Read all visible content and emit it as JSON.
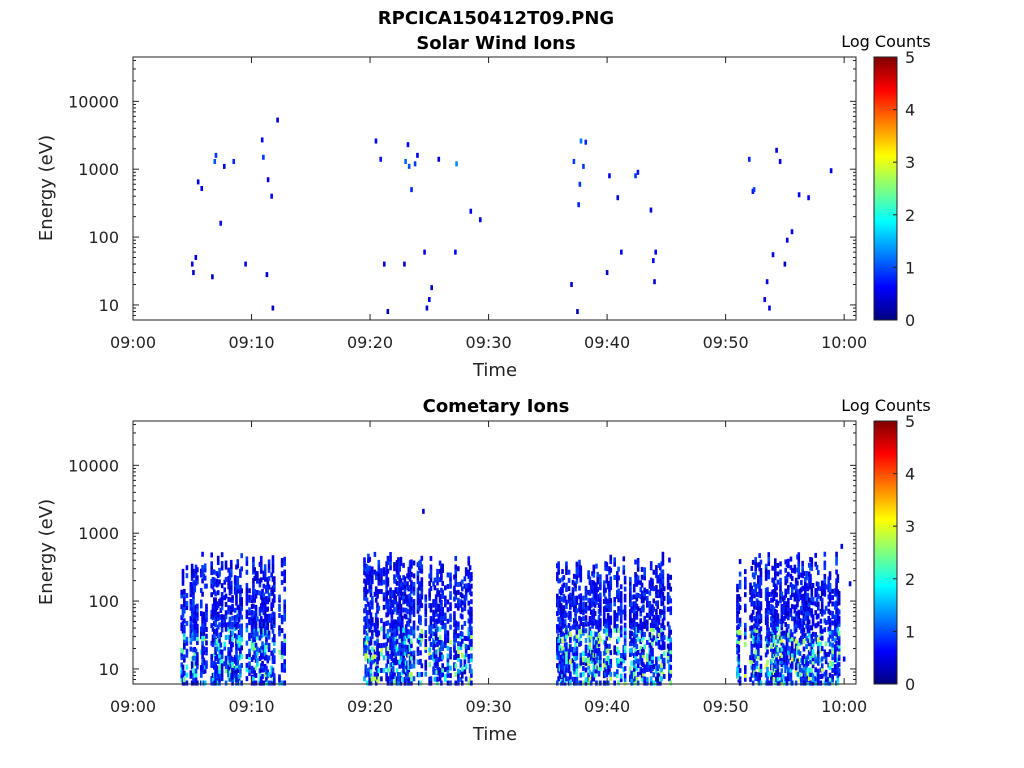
{
  "figure": {
    "title": "RPCICA150412T09.PNG"
  },
  "chart_data": [
    {
      "type": "heatmap",
      "title": "Solar Wind Ions",
      "xlabel": "Time",
      "ylabel": "Energy (eV)",
      "x_ticks": [
        "09:00",
        "09:10",
        "09:20",
        "09:30",
        "09:40",
        "09:50",
        "10:00"
      ],
      "xlim_minutes_after_0900": [
        0,
        61
      ],
      "y_scale": "log",
      "y_ticks": [
        {
          "value": 10,
          "label": "10"
        },
        {
          "value": 100,
          "label": "100"
        },
        {
          "value": 1000,
          "label": "1000"
        },
        {
          "value": 10000,
          "label": "10000"
        }
      ],
      "ylim": [
        6,
        45000
      ],
      "colorbar": {
        "label": "Log Counts",
        "range": [
          0,
          5
        ],
        "ticks": [
          "0",
          "1",
          "2",
          "3",
          "4",
          "5"
        ],
        "colormap": "jet"
      },
      "grid": false,
      "cells": [
        [
          5.0,
          40,
          0.6
        ],
        [
          5.1,
          30,
          0.4
        ],
        [
          5.3,
          50,
          0.5
        ],
        [
          5.5,
          650,
          0.6
        ],
        [
          5.8,
          520,
          0.5
        ],
        [
          6.7,
          26,
          0.3
        ],
        [
          6.9,
          1300,
          1.0
        ],
        [
          7.0,
          1600,
          0.9
        ],
        [
          7.4,
          160,
          0.7
        ],
        [
          7.7,
          1100,
          0.5
        ],
        [
          8.5,
          1300,
          0.8
        ],
        [
          9.5,
          40,
          0.5
        ],
        [
          10.9,
          2700,
          0.6
        ],
        [
          11.0,
          1500,
          0.9
        ],
        [
          11.3,
          28,
          0.4
        ],
        [
          11.4,
          700,
          0.5
        ],
        [
          11.7,
          400,
          0.6
        ],
        [
          11.8,
          9,
          0.3
        ],
        [
          12.2,
          5300,
          0.4
        ],
        [
          20.5,
          2600,
          0.6
        ],
        [
          20.9,
          1400,
          0.7
        ],
        [
          21.2,
          40,
          0.5
        ],
        [
          21.5,
          8,
          0.3
        ],
        [
          22.9,
          40,
          0.4
        ],
        [
          23.0,
          1300,
          1.1
        ],
        [
          23.2,
          2300,
          0.6
        ],
        [
          23.3,
          1100,
          1.0
        ],
        [
          23.5,
          500,
          0.8
        ],
        [
          23.8,
          1200,
          0.9
        ],
        [
          24.0,
          1600,
          0.5
        ],
        [
          24.6,
          60,
          0.5
        ],
        [
          24.8,
          9,
          0.4
        ],
        [
          25.0,
          12,
          0.5
        ],
        [
          25.2,
          18,
          0.4
        ],
        [
          25.8,
          1400,
          0.5
        ],
        [
          27.2,
          60,
          0.6
        ],
        [
          27.3,
          1200,
          1.3
        ],
        [
          28.5,
          240,
          0.5
        ],
        [
          29.3,
          180,
          0.4
        ],
        [
          37.0,
          20,
          0.4
        ],
        [
          37.2,
          1300,
          0.9
        ],
        [
          37.5,
          8,
          0.3
        ],
        [
          37.6,
          300,
          0.8
        ],
        [
          37.7,
          600,
          0.9
        ],
        [
          37.8,
          2600,
          1.2
        ],
        [
          38.0,
          1100,
          0.9
        ],
        [
          38.2,
          2500,
          0.8
        ],
        [
          40.0,
          30,
          0.4
        ],
        [
          40.2,
          800,
          0.6
        ],
        [
          40.9,
          380,
          0.5
        ],
        [
          41.2,
          60,
          0.5
        ],
        [
          42.4,
          800,
          0.9
        ],
        [
          42.6,
          900,
          0.7
        ],
        [
          43.7,
          250,
          0.5
        ],
        [
          43.9,
          45,
          0.6
        ],
        [
          44.0,
          22,
          0.4
        ],
        [
          44.1,
          60,
          0.5
        ],
        [
          52.0,
          1400,
          0.8
        ],
        [
          52.3,
          470,
          0.7
        ],
        [
          52.4,
          500,
          0.9
        ],
        [
          53.3,
          12,
          0.4
        ],
        [
          53.5,
          22,
          0.5
        ],
        [
          53.7,
          9,
          0.4
        ],
        [
          54.0,
          55,
          0.5
        ],
        [
          54.3,
          1900,
          0.4
        ],
        [
          54.6,
          1300,
          0.5
        ],
        [
          55.0,
          40,
          0.4
        ],
        [
          55.2,
          90,
          0.6
        ],
        [
          55.6,
          120,
          0.5
        ],
        [
          56.2,
          420,
          0.5
        ],
        [
          57.0,
          380,
          0.6
        ],
        [
          58.9,
          950,
          0.5
        ]
      ]
    },
    {
      "type": "heatmap",
      "title": "Cometary Ions",
      "xlabel": "Time",
      "ylabel": "Energy (eV)",
      "x_ticks": [
        "09:00",
        "09:10",
        "09:20",
        "09:30",
        "09:40",
        "09:50",
        "10:00"
      ],
      "xlim_minutes_after_0900": [
        0,
        61
      ],
      "y_scale": "log",
      "y_ticks": [
        {
          "value": 10,
          "label": "10"
        },
        {
          "value": 100,
          "label": "100"
        },
        {
          "value": 1000,
          "label": "1000"
        },
        {
          "value": 10000,
          "label": "10000"
        }
      ],
      "ylim": [
        6,
        45000
      ],
      "colorbar": {
        "label": "Log Counts",
        "range": [
          0,
          5
        ],
        "ticks": [
          "0",
          "1",
          "2",
          "3",
          "4",
          "5"
        ],
        "colormap": "jet"
      },
      "grid": false,
      "bursts": [
        {
          "start": 4.0,
          "end": 12.8,
          "peak": 1.7
        },
        {
          "start": 19.2,
          "end": 28.6,
          "peak": 2.0
        },
        {
          "start": 35.8,
          "end": 45.4,
          "peak": 2.0
        },
        {
          "start": 51.0,
          "end": 59.6,
          "peak": 2.2
        }
      ],
      "isolated": [
        [
          24.5,
          2100,
          0.4
        ],
        [
          59.8,
          640,
          0.5
        ],
        [
          60.0,
          14,
          0.6
        ],
        [
          60.5,
          180,
          0.4
        ]
      ]
    }
  ]
}
